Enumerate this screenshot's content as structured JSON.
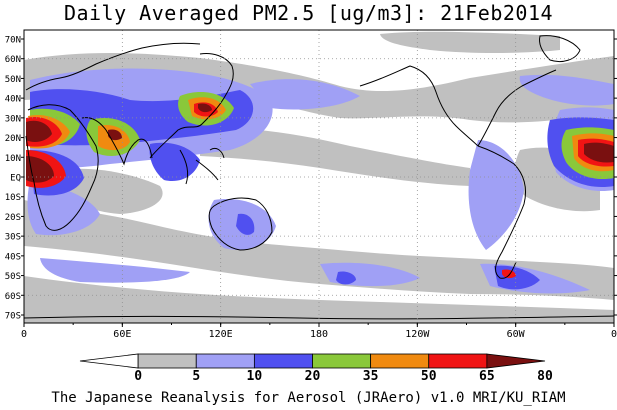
{
  "title": "Daily Averaged PM2.5 [ug/m3]: 21Feb2014",
  "footer": "The Japanese Reanalysis for Aerosol (JRAero) v1.0 MRI/KU_RIAM",
  "map": {
    "lon_labels": [
      "0",
      "60E",
      "120E",
      "180",
      "120W",
      "60W",
      "0"
    ],
    "lat_labels": [
      "70N",
      "60N",
      "50N",
      "40N",
      "30N",
      "20N",
      "10N",
      "EQ",
      "10S",
      "20S",
      "30S",
      "40S",
      "50S",
      "60S",
      "70S"
    ]
  },
  "colorbar": {
    "levels": [
      "0",
      "5",
      "10",
      "20",
      "35",
      "50",
      "65",
      "80"
    ],
    "colors": [
      "#ffffff",
      "#c0c0c0",
      "#a0a0f5",
      "#5050f0",
      "#8ac83a",
      "#f08a10",
      "#f01414",
      "#7a1010"
    ]
  },
  "palette": {
    "light_gray": "#c0c0c0",
    "light_blue": "#a0a0f5",
    "blue": "#5050f0",
    "green": "#8ac83a",
    "orange": "#f08a10",
    "red": "#f01414",
    "dark_red": "#7a1010"
  }
}
